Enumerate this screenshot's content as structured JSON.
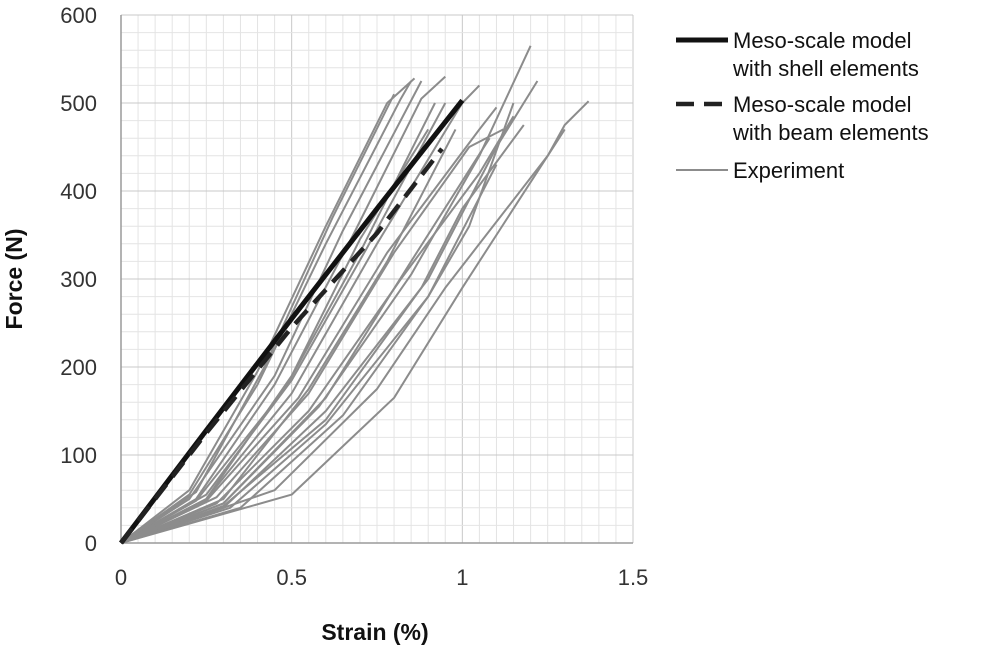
{
  "chart_data": {
    "type": "line",
    "xlabel": "Strain (%)",
    "ylabel": "Force (N)",
    "xlim": [
      0,
      1.5
    ],
    "ylim": [
      0,
      600
    ],
    "x_ticks": [
      "0",
      "0.5",
      "1",
      "1.5"
    ],
    "y_ticks": [
      "0",
      "100",
      "200",
      "300",
      "400",
      "500",
      "600"
    ],
    "grid": true,
    "legend_position": "right",
    "series": [
      {
        "name": "Meso-scale model\nwith shell elements",
        "style": "solid",
        "color": "#111111",
        "points": [
          [
            0,
            0
          ],
          [
            0.25,
            128
          ],
          [
            0.5,
            255
          ],
          [
            0.75,
            380
          ],
          [
            1.0,
            503
          ]
        ]
      },
      {
        "name": "Meso-scale model\nwith beam elements",
        "style": "dashed",
        "color": "#222222",
        "points": [
          [
            0,
            0
          ],
          [
            0.25,
            125
          ],
          [
            0.5,
            245
          ],
          [
            0.75,
            352
          ],
          [
            0.94,
            448
          ]
        ]
      },
      {
        "name": "Experiment",
        "style": "thin",
        "color": "#8c8c8c",
        "curves": [
          [
            [
              0,
              0
            ],
            [
              0.2,
              60
            ],
            [
              0.4,
              195
            ],
            [
              0.6,
              360
            ],
            [
              0.78,
              500
            ],
            [
              0.86,
              528
            ]
          ],
          [
            [
              0,
              0
            ],
            [
              0.2,
              55
            ],
            [
              0.4,
              180
            ],
            [
              0.6,
              340
            ],
            [
              0.82,
              505
            ],
            [
              0.85,
              525
            ]
          ],
          [
            [
              0,
              0
            ],
            [
              0.2,
              50
            ],
            [
              0.45,
              190
            ],
            [
              0.65,
              355
            ],
            [
              0.88,
              525
            ]
          ],
          [
            [
              0,
              0
            ],
            [
              0.22,
              50
            ],
            [
              0.45,
              180
            ],
            [
              0.68,
              350
            ],
            [
              0.88,
              505
            ],
            [
              0.95,
              530
            ]
          ],
          [
            [
              0,
              0
            ],
            [
              0.22,
              48
            ],
            [
              0.48,
              175
            ],
            [
              0.7,
              330
            ],
            [
              0.92,
              500
            ]
          ],
          [
            [
              0,
              0
            ],
            [
              0.25,
              55
            ],
            [
              0.5,
              185
            ],
            [
              0.72,
              335
            ],
            [
              0.95,
              500
            ]
          ],
          [
            [
              0,
              0
            ],
            [
              0.25,
              50
            ],
            [
              0.5,
              170
            ],
            [
              0.75,
              340
            ],
            [
              1.0,
              500
            ],
            [
              1.05,
              520
            ]
          ],
          [
            [
              0,
              0
            ],
            [
              0.25,
              48
            ],
            [
              0.52,
              165
            ],
            [
              0.78,
              330
            ],
            [
              1.05,
              470
            ],
            [
              1.1,
              495
            ]
          ],
          [
            [
              0,
              0
            ],
            [
              0.28,
              52
            ],
            [
              0.55,
              170
            ],
            [
              0.8,
              330
            ],
            [
              1.02,
              450
            ],
            [
              1.12,
              470
            ]
          ],
          [
            [
              0,
              0
            ],
            [
              0.28,
              45
            ],
            [
              0.55,
              150
            ],
            [
              0.82,
              300
            ],
            [
              1.05,
              420
            ],
            [
              1.15,
              485
            ]
          ],
          [
            [
              0,
              0
            ],
            [
              0.3,
              45
            ],
            [
              0.58,
              155
            ],
            [
              0.85,
              305
            ],
            [
              1.05,
              440
            ],
            [
              1.2,
              565
            ]
          ],
          [
            [
              0,
              0
            ],
            [
              0.3,
              40
            ],
            [
              0.6,
              150
            ],
            [
              0.9,
              300
            ],
            [
              1.1,
              450
            ],
            [
              1.22,
              525
            ]
          ],
          [
            [
              0,
              0
            ],
            [
              0.3,
              42
            ],
            [
              0.6,
              140
            ],
            [
              0.88,
              290
            ],
            [
              1.0,
              380
            ],
            [
              1.18,
              475
            ]
          ],
          [
            [
              0,
              0
            ],
            [
              0.32,
              40
            ],
            [
              0.6,
              135
            ],
            [
              0.9,
              280
            ],
            [
              1.02,
              360
            ],
            [
              1.15,
              500
            ]
          ],
          [
            [
              0,
              0
            ],
            [
              0.25,
              50
            ],
            [
              0.5,
              190
            ],
            [
              0.7,
              345
            ],
            [
              0.9,
              470
            ]
          ],
          [
            [
              0,
              0
            ],
            [
              0.22,
              58
            ],
            [
              0.42,
              200
            ],
            [
              0.62,
              370
            ],
            [
              0.8,
              510
            ]
          ],
          [
            [
              0,
              0
            ],
            [
              0.3,
              50
            ],
            [
              0.55,
              175
            ],
            [
              0.78,
              320
            ],
            [
              0.98,
              470
            ]
          ],
          [
            [
              0,
              0
            ],
            [
              0.3,
              45
            ],
            [
              0.6,
              165
            ],
            [
              0.85,
              320
            ],
            [
              1.08,
              460
            ]
          ],
          [
            [
              0,
              0
            ],
            [
              0.35,
              40
            ],
            [
              0.65,
              145
            ],
            [
              0.9,
              280
            ],
            [
              1.1,
              430
            ]
          ],
          [
            [
              0,
              0
            ],
            [
              0.45,
              60
            ],
            [
              0.75,
              175
            ],
            [
              0.95,
              290
            ],
            [
              1.05,
              340
            ],
            [
              1.25,
              440
            ],
            [
              1.3,
              475
            ],
            [
              1.37,
              502
            ]
          ],
          [
            [
              0,
              0
            ],
            [
              0.5,
              55
            ],
            [
              0.8,
              165
            ],
            [
              1.0,
              290
            ],
            [
              1.15,
              380
            ],
            [
              1.25,
              440
            ],
            [
              1.3,
              470
            ]
          ]
        ]
      }
    ]
  }
}
